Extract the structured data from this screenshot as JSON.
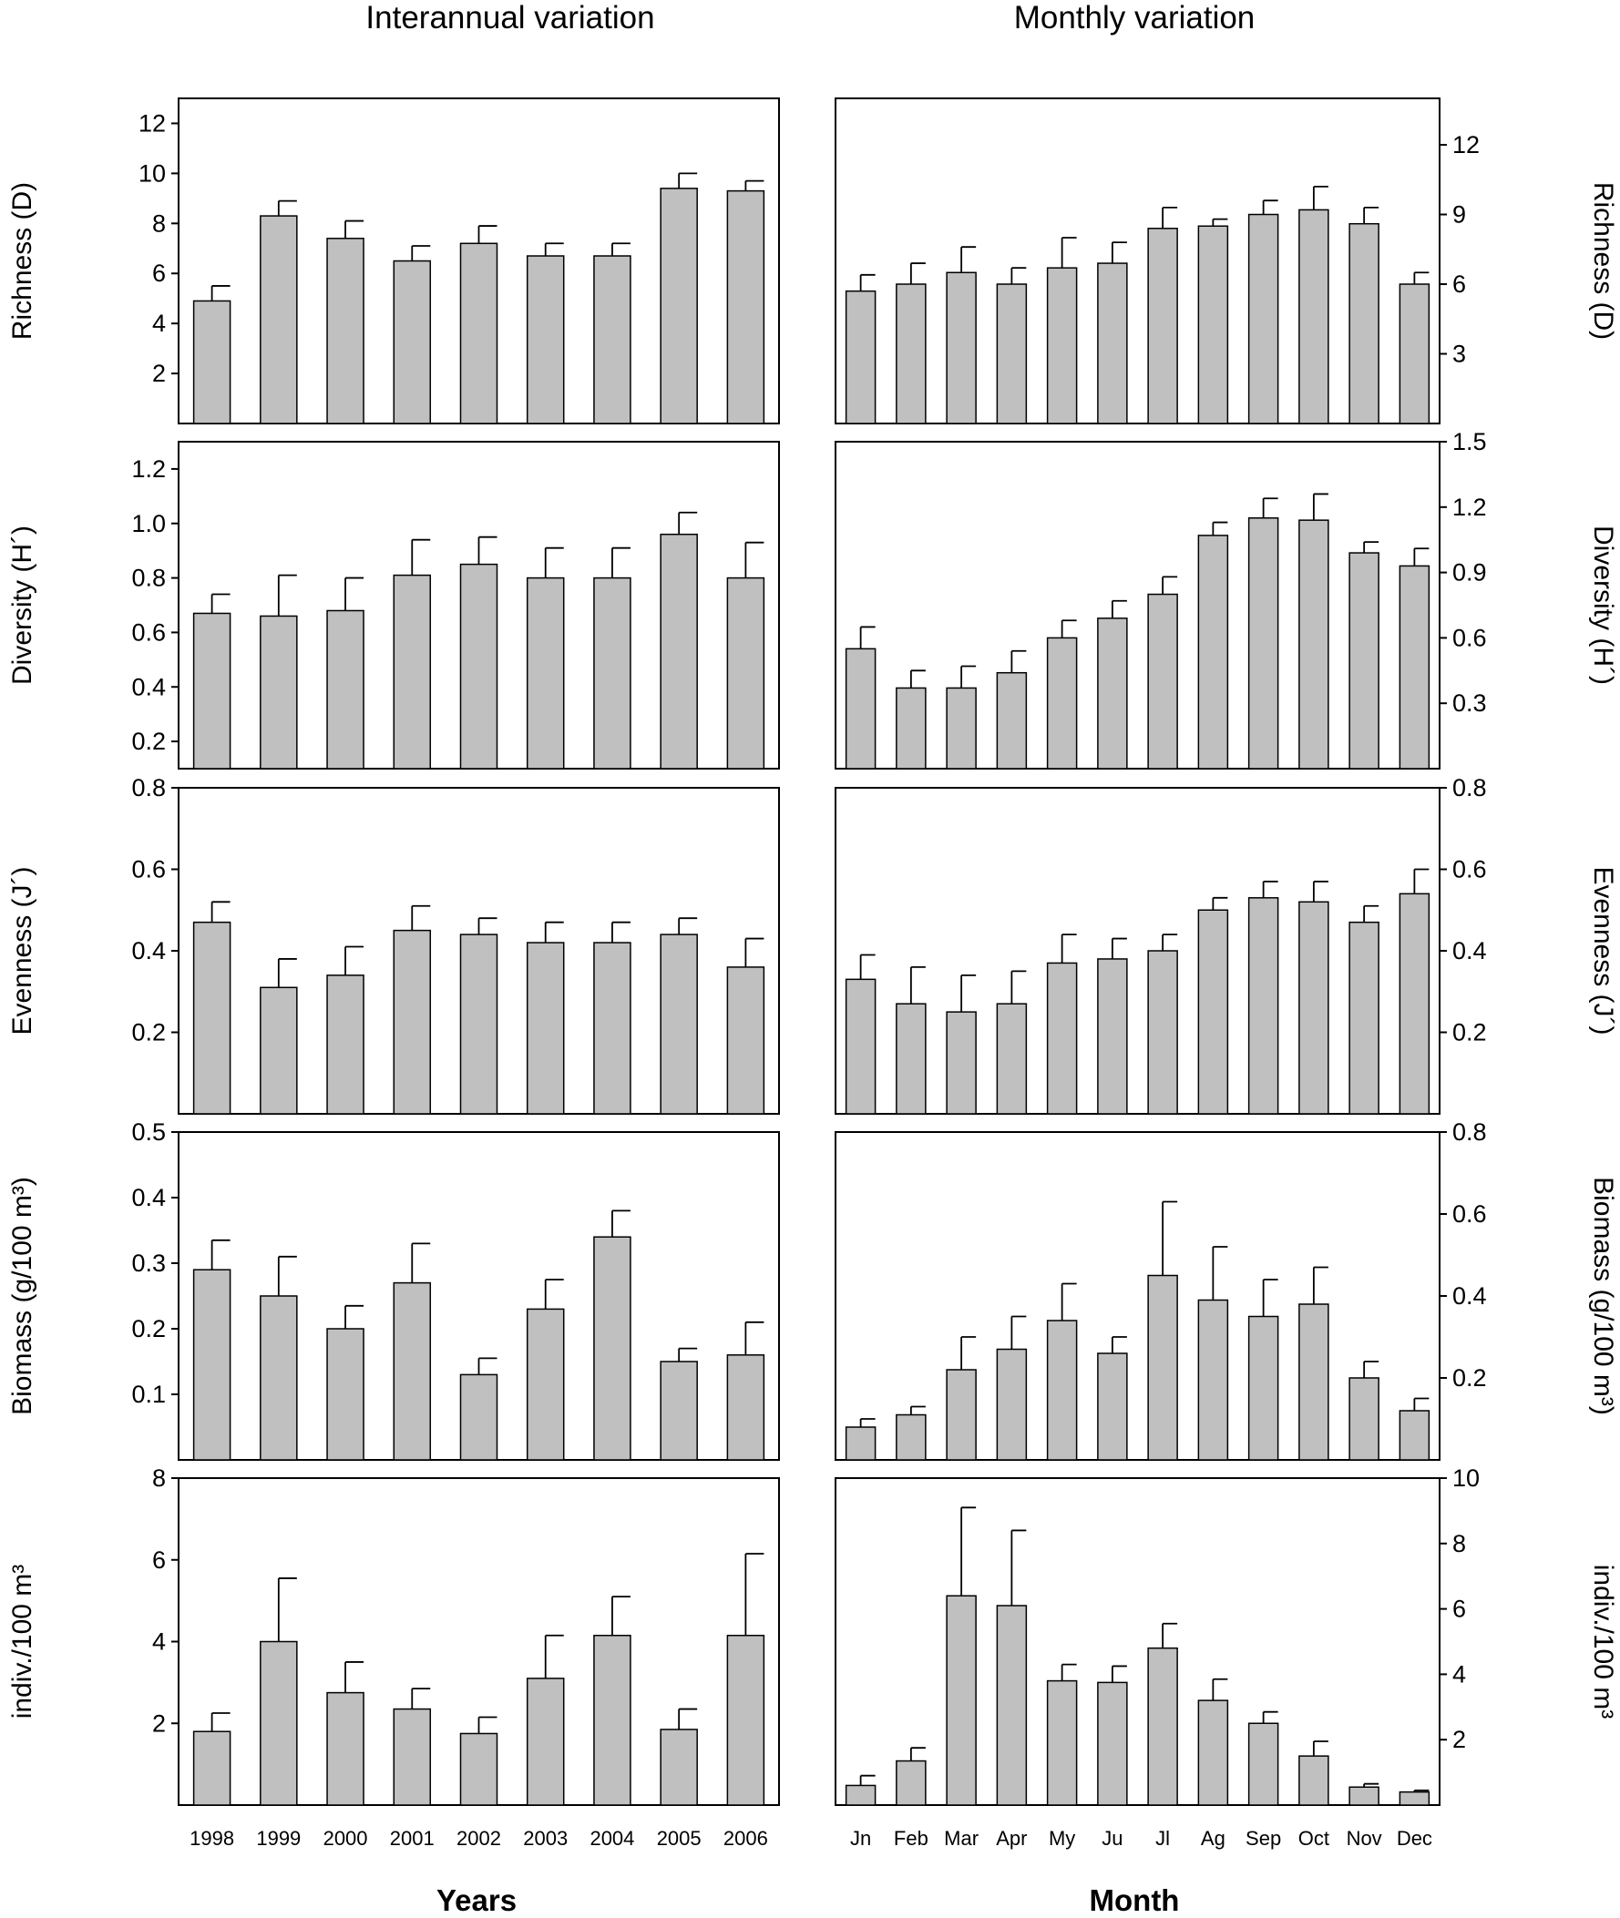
{
  "headings": {
    "left": "Interannual variation",
    "right": "Monthly variation",
    "left_xlabel": "Years",
    "right_xlabel": "Month"
  },
  "chart_data": [
    {
      "id": "richness-years",
      "type": "bar",
      "column": "left",
      "row": 0,
      "ylabel": "Richness (D)",
      "ylim": [
        0,
        13
      ],
      "yticks": [
        2,
        4,
        6,
        8,
        10,
        12
      ],
      "categories": [
        "1998",
        "1999",
        "2000",
        "2001",
        "2002",
        "2003",
        "2004",
        "2005",
        "2006"
      ],
      "values": [
        4.9,
        8.3,
        7.4,
        6.5,
        7.2,
        6.7,
        6.7,
        9.4,
        9.3
      ],
      "errors": [
        0.6,
        0.6,
        0.7,
        0.6,
        0.7,
        0.5,
        0.5,
        0.6,
        0.4
      ]
    },
    {
      "id": "richness-months",
      "type": "bar",
      "column": "right",
      "row": 0,
      "ylabel": "Richness (D)",
      "ylim": [
        0,
        14
      ],
      "yticks": [
        3,
        6,
        9,
        12
      ],
      "categories": [
        "Jn",
        "Feb",
        "Mar",
        "Apr",
        "My",
        "Ju",
        "Jl",
        "Ag",
        "Sep",
        "Oct",
        "Nov",
        "Dec"
      ],
      "values": [
        5.7,
        6.0,
        6.5,
        6.0,
        6.7,
        6.9,
        8.4,
        8.5,
        9.0,
        9.2,
        8.6,
        6.0
      ],
      "errors": [
        0.7,
        0.9,
        1.1,
        0.7,
        1.3,
        0.9,
        0.9,
        0.3,
        0.6,
        1.0,
        0.7,
        0.5
      ]
    },
    {
      "id": "diversity-years",
      "type": "bar",
      "column": "left",
      "row": 1,
      "ylabel": "Diversity (H´)",
      "ylim": [
        0.1,
        1.3
      ],
      "yticks": [
        0.2,
        0.4,
        0.6,
        0.8,
        1.0,
        1.2
      ],
      "yticklabels": [
        "0.2",
        "0.4",
        "0.6",
        "0.8",
        "1.0",
        "1.2"
      ],
      "categories": [
        "1998",
        "1999",
        "2000",
        "2001",
        "2002",
        "2003",
        "2004",
        "2005",
        "2006"
      ],
      "values": [
        0.67,
        0.66,
        0.68,
        0.81,
        0.85,
        0.8,
        0.8,
        0.96,
        0.8
      ],
      "errors": [
        0.07,
        0.15,
        0.12,
        0.13,
        0.1,
        0.11,
        0.11,
        0.08,
        0.13
      ]
    },
    {
      "id": "diversity-months",
      "type": "bar",
      "column": "right",
      "row": 1,
      "ylabel": "Diversity (H´)",
      "ylim": [
        0,
        1.5
      ],
      "yticks": [
        0.3,
        0.6,
        0.9,
        1.2,
        1.5
      ],
      "yticklabels": [
        "0.3",
        "0.6",
        "0.9",
        "1.2",
        "1.5"
      ],
      "categories": [
        "Jn",
        "Feb",
        "Mar",
        "Apr",
        "My",
        "Ju",
        "Jl",
        "Ag",
        "Sep",
        "Oct",
        "Nov",
        "Dec"
      ],
      "values": [
        0.55,
        0.37,
        0.37,
        0.44,
        0.6,
        0.69,
        0.8,
        1.07,
        1.15,
        1.14,
        0.99,
        0.93
      ],
      "errors": [
        0.1,
        0.08,
        0.1,
        0.1,
        0.08,
        0.08,
        0.08,
        0.06,
        0.09,
        0.12,
        0.05,
        0.08
      ]
    },
    {
      "id": "evenness-years",
      "type": "bar",
      "column": "left",
      "row": 2,
      "ylabel": "Evenness (J´)",
      "ylim": [
        0,
        0.8
      ],
      "yticks": [
        0.2,
        0.4,
        0.6,
        0.8
      ],
      "yticklabels": [
        "0.2",
        "0.4",
        "0.6",
        "0.8"
      ],
      "categories": [
        "1998",
        "1999",
        "2000",
        "2001",
        "2002",
        "2003",
        "2004",
        "2005",
        "2006"
      ],
      "values": [
        0.47,
        0.31,
        0.34,
        0.45,
        0.44,
        0.42,
        0.42,
        0.44,
        0.36
      ],
      "errors": [
        0.05,
        0.07,
        0.07,
        0.06,
        0.04,
        0.05,
        0.05,
        0.04,
        0.07
      ]
    },
    {
      "id": "evenness-months",
      "type": "bar",
      "column": "right",
      "row": 2,
      "ylabel": "Evenness (J´)",
      "ylim": [
        0,
        0.8
      ],
      "yticks": [
        0.2,
        0.4,
        0.6,
        0.8
      ],
      "yticklabels": [
        "0.2",
        "0.4",
        "0.6",
        "0.8"
      ],
      "categories": [
        "Jn",
        "Feb",
        "Mar",
        "Apr",
        "My",
        "Ju",
        "Jl",
        "Ag",
        "Sep",
        "Oct",
        "Nov",
        "Dec"
      ],
      "values": [
        0.33,
        0.27,
        0.25,
        0.27,
        0.37,
        0.38,
        0.4,
        0.5,
        0.53,
        0.52,
        0.47,
        0.54
      ],
      "errors": [
        0.06,
        0.09,
        0.09,
        0.08,
        0.07,
        0.05,
        0.04,
        0.03,
        0.04,
        0.05,
        0.04,
        0.06
      ]
    },
    {
      "id": "biomass-years",
      "type": "bar",
      "column": "left",
      "row": 3,
      "ylabel": "Biomass (g/100 m³)",
      "ylim": [
        0,
        0.5
      ],
      "yticks": [
        0.1,
        0.2,
        0.3,
        0.4,
        0.5
      ],
      "yticklabels": [
        "0.1",
        "0.2",
        "0.3",
        "0.4",
        "0.5"
      ],
      "categories": [
        "1998",
        "1999",
        "2000",
        "2001",
        "2002",
        "2003",
        "2004",
        "2005",
        "2006"
      ],
      "values": [
        0.29,
        0.25,
        0.2,
        0.27,
        0.13,
        0.23,
        0.34,
        0.15,
        0.16
      ],
      "errors": [
        0.045,
        0.06,
        0.035,
        0.06,
        0.025,
        0.045,
        0.04,
        0.02,
        0.05
      ]
    },
    {
      "id": "biomass-months",
      "type": "bar",
      "column": "right",
      "row": 3,
      "ylabel": "Biomass (g/100 m³)",
      "ylim": [
        0,
        0.8
      ],
      "yticks": [
        0.2,
        0.4,
        0.6,
        0.8
      ],
      "yticklabels": [
        "0.2",
        "0.4",
        "0.6",
        "0.8"
      ],
      "categories": [
        "Jn",
        "Feb",
        "Mar",
        "Apr",
        "My",
        "Ju",
        "Jl",
        "Ag",
        "Sep",
        "Oct",
        "Nov",
        "Dec"
      ],
      "values": [
        0.08,
        0.11,
        0.22,
        0.27,
        0.34,
        0.26,
        0.45,
        0.39,
        0.35,
        0.38,
        0.2,
        0.12
      ],
      "errors": [
        0.02,
        0.02,
        0.08,
        0.08,
        0.09,
        0.04,
        0.18,
        0.13,
        0.09,
        0.09,
        0.04,
        0.03
      ]
    },
    {
      "id": "abundance-years",
      "type": "bar",
      "column": "left",
      "row": 4,
      "ylabel": "indiv./100 m³",
      "ylim": [
        0,
        8
      ],
      "yticks": [
        2,
        4,
        6,
        8
      ],
      "categories": [
        "1998",
        "1999",
        "2000",
        "2001",
        "2002",
        "2003",
        "2004",
        "2005",
        "2006"
      ],
      "values": [
        1.8,
        4.0,
        2.75,
        2.35,
        1.75,
        3.1,
        4.15,
        1.85,
        4.15
      ],
      "errors": [
        0.45,
        1.55,
        0.75,
        0.5,
        0.4,
        1.05,
        0.95,
        0.5,
        2.0
      ]
    },
    {
      "id": "abundance-months",
      "type": "bar",
      "column": "right",
      "row": 4,
      "ylabel": "indiv./100 m³",
      "ylim": [
        0,
        10
      ],
      "yticks": [
        2,
        4,
        6,
        8,
        10
      ],
      "categories": [
        "Jn",
        "Feb",
        "Mar",
        "Apr",
        "My",
        "Ju",
        "Jl",
        "Ag",
        "Sep",
        "Oct",
        "Nov",
        "Dec"
      ],
      "values": [
        0.6,
        1.35,
        6.4,
        6.1,
        3.8,
        3.75,
        4.8,
        3.2,
        2.5,
        1.5,
        0.55,
        0.4
      ],
      "errors": [
        0.3,
        0.4,
        2.7,
        2.3,
        0.5,
        0.5,
        0.75,
        0.65,
        0.35,
        0.45,
        0.1,
        0.05
      ]
    }
  ]
}
